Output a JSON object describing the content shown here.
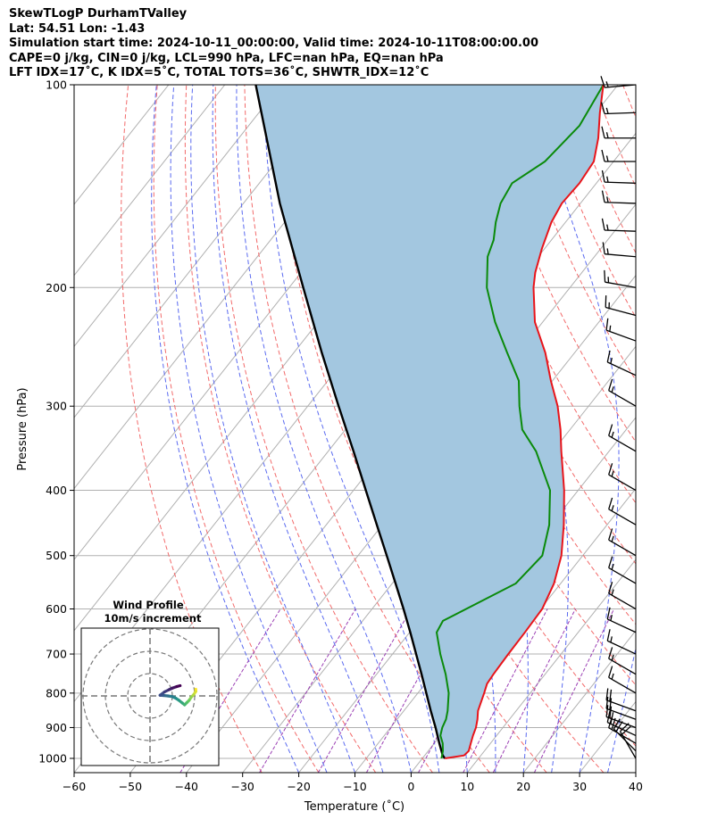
{
  "header": {
    "line1": "SkewTLogP DurhamTValley",
    "line2": "Lat: 54.51   Lon: -1.43",
    "line3": "Simulation start time: 2024-10-11_00:00:00, Valid time: 2024-10-11T08:00:00.00",
    "line4": "CAPE=0 j/kg, CIN=0 j/kg, LCL=990 hPa, LFC=nan hPa, EQ=nan hPa",
    "line5": "LFT IDX=17˚C, K IDX=5˚C, TOTAL TOTS=36˚C, SHWTR_IDX=12˚C"
  },
  "chart_data": {
    "type": "skewt",
    "xlabel": "Temperature (˚C)",
    "ylabel": "Pressure (hPa)",
    "xlim": [
      -60,
      40
    ],
    "ylim": [
      1050,
      100
    ],
    "x_ticks": [
      "−60",
      "−50",
      "−40",
      "−30",
      "−20",
      "−10",
      "0",
      "10",
      "20",
      "30",
      "40"
    ],
    "y_ticks": [
      "100",
      "200",
      "300",
      "400",
      "500",
      "600",
      "700",
      "800",
      "900",
      "1000"
    ],
    "colors": {
      "temperature": "#e8141a",
      "dewpoint": "#0a8a0a",
      "parcel": "#000000",
      "fill": "#a3c7e0",
      "dry_adiabats": "#f26a6a",
      "moist_adiabats": "#5a6af0",
      "mixing_ratio": "#9b3fb4",
      "grid": "#b0b0b0"
    },
    "temperature_profile": [
      {
        "p": 1000,
        "t": 4.0
      },
      {
        "p": 990,
        "t": 7.0
      },
      {
        "p": 975,
        "t": 7.2
      },
      {
        "p": 950,
        "t": 6.5
      },
      {
        "p": 925,
        "t": 5.8
      },
      {
        "p": 900,
        "t": 5.2
      },
      {
        "p": 875,
        "t": 4.3
      },
      {
        "p": 850,
        "t": 3.2
      },
      {
        "p": 800,
        "t": 1.8
      },
      {
        "p": 775,
        "t": 1.0
      },
      {
        "p": 750,
        "t": 0.8
      },
      {
        "p": 700,
        "t": 0.6
      },
      {
        "p": 650,
        "t": 0.5
      },
      {
        "p": 600,
        "t": 0.3
      },
      {
        "p": 550,
        "t": -1.2
      },
      {
        "p": 500,
        "t": -3.8
      },
      {
        "p": 450,
        "t": -7.7
      },
      {
        "p": 400,
        "t": -12.5
      },
      {
        "p": 350,
        "t": -18.5
      },
      {
        "p": 325,
        "t": -21.7
      },
      {
        "p": 300,
        "t": -25.5
      },
      {
        "p": 275,
        "t": -30.3
      },
      {
        "p": 250,
        "t": -35.2
      },
      {
        "p": 225,
        "t": -41.4
      },
      {
        "p": 200,
        "t": -46.5
      },
      {
        "p": 190,
        "t": -48.3
      },
      {
        "p": 175,
        "t": -50.5
      },
      {
        "p": 160,
        "t": -52.5
      },
      {
        "p": 150,
        "t": -53.3
      },
      {
        "p": 140,
        "t": -53.0
      },
      {
        "p": 130,
        "t": -53.5
      },
      {
        "p": 120,
        "t": -56.0
      },
      {
        "p": 110,
        "t": -59.3
      },
      {
        "p": 100,
        "t": -62.6
      }
    ],
    "dewpoint_profile": [
      {
        "p": 1000,
        "t": 3.4
      },
      {
        "p": 975,
        "t": 2.6
      },
      {
        "p": 950,
        "t": 1.5
      },
      {
        "p": 925,
        "t": 0.0
      },
      {
        "p": 900,
        "t": -0.8
      },
      {
        "p": 875,
        "t": -1.3
      },
      {
        "p": 850,
        "t": -2.2
      },
      {
        "p": 800,
        "t": -4.5
      },
      {
        "p": 750,
        "t": -7.7
      },
      {
        "p": 700,
        "t": -11.5
      },
      {
        "p": 650,
        "t": -15.2
      },
      {
        "p": 625,
        "t": -15.7
      },
      {
        "p": 550,
        "t": -8.0
      },
      {
        "p": 500,
        "t": -7.2
      },
      {
        "p": 450,
        "t": -10.3
      },
      {
        "p": 400,
        "t": -15.0
      },
      {
        "p": 350,
        "t": -23.0
      },
      {
        "p": 325,
        "t": -28.5
      },
      {
        "p": 300,
        "t": -32.3
      },
      {
        "p": 275,
        "t": -36.0
      },
      {
        "p": 250,
        "t": -42.0
      },
      {
        "p": 225,
        "t": -48.5
      },
      {
        "p": 200,
        "t": -54.8
      },
      {
        "p": 180,
        "t": -59.0
      },
      {
        "p": 170,
        "t": -60.3
      },
      {
        "p": 160,
        "t": -62.4
      },
      {
        "p": 150,
        "t": -64.2
      },
      {
        "p": 140,
        "t": -65.0
      },
      {
        "p": 130,
        "t": -62.2
      },
      {
        "p": 115,
        "t": -61.1
      },
      {
        "p": 100,
        "t": -62.6
      }
    ],
    "parcel_profile": [
      {
        "p": 1000,
        "t": 4.0
      },
      {
        "p": 990,
        "t": 3.2
      },
      {
        "p": 950,
        "t": 0.9
      },
      {
        "p": 900,
        "t": -2.0
      },
      {
        "p": 850,
        "t": -5.2
      },
      {
        "p": 800,
        "t": -8.5
      },
      {
        "p": 750,
        "t": -12.0
      },
      {
        "p": 700,
        "t": -15.8
      },
      {
        "p": 650,
        "t": -19.9
      },
      {
        "p": 600,
        "t": -24.4
      },
      {
        "p": 550,
        "t": -29.4
      },
      {
        "p": 500,
        "t": -34.9
      },
      {
        "p": 450,
        "t": -41.0
      },
      {
        "p": 400,
        "t": -47.8
      },
      {
        "p": 350,
        "t": -55.5
      },
      {
        "p": 300,
        "t": -64.5
      },
      {
        "p": 250,
        "t": -75.0
      },
      {
        "p": 200,
        "t": -87.5
      },
      {
        "p": 150,
        "t": -103.5
      },
      {
        "p": 100,
        "t": -124.5
      }
    ],
    "wind_barbs": [
      {
        "p": 1000,
        "speed_kt": 20,
        "dir_deg": 330
      },
      {
        "p": 975,
        "speed_kt": 20,
        "dir_deg": 315
      },
      {
        "p": 950,
        "speed_kt": 20,
        "dir_deg": 300
      },
      {
        "p": 925,
        "speed_kt": 20,
        "dir_deg": 295
      },
      {
        "p": 900,
        "speed_kt": 20,
        "dir_deg": 290
      },
      {
        "p": 875,
        "speed_kt": 20,
        "dir_deg": 290
      },
      {
        "p": 850,
        "speed_kt": 20,
        "dir_deg": 290
      },
      {
        "p": 800,
        "speed_kt": 15,
        "dir_deg": 300
      },
      {
        "p": 750,
        "speed_kt": 15,
        "dir_deg": 300
      },
      {
        "p": 700,
        "speed_kt": 15,
        "dir_deg": 295
      },
      {
        "p": 650,
        "speed_kt": 15,
        "dir_deg": 295
      },
      {
        "p": 600,
        "speed_kt": 15,
        "dir_deg": 300
      },
      {
        "p": 550,
        "speed_kt": 15,
        "dir_deg": 300
      },
      {
        "p": 500,
        "speed_kt": 15,
        "dir_deg": 300
      },
      {
        "p": 450,
        "speed_kt": 15,
        "dir_deg": 300
      },
      {
        "p": 400,
        "speed_kt": 15,
        "dir_deg": 300
      },
      {
        "p": 350,
        "speed_kt": 15,
        "dir_deg": 300
      },
      {
        "p": 300,
        "speed_kt": 15,
        "dir_deg": 300
      },
      {
        "p": 270,
        "speed_kt": 15,
        "dir_deg": 295
      },
      {
        "p": 240,
        "speed_kt": 15,
        "dir_deg": 290
      },
      {
        "p": 220,
        "speed_kt": 15,
        "dir_deg": 285
      },
      {
        "p": 200,
        "speed_kt": 15,
        "dir_deg": 280
      },
      {
        "p": 180,
        "speed_kt": 15,
        "dir_deg": 275
      },
      {
        "p": 165,
        "speed_kt": 15,
        "dir_deg": 272
      },
      {
        "p": 150,
        "speed_kt": 15,
        "dir_deg": 272
      },
      {
        "p": 140,
        "speed_kt": 15,
        "dir_deg": 272
      },
      {
        "p": 130,
        "speed_kt": 15,
        "dir_deg": 270
      },
      {
        "p": 120,
        "speed_kt": 15,
        "dir_deg": 270
      },
      {
        "p": 110,
        "speed_kt": 15,
        "dir_deg": 268
      },
      {
        "p": 100,
        "speed_kt": 15,
        "dir_deg": 265
      }
    ],
    "hodograph": {
      "title": "Wind Profile",
      "subtitle": "10m/s increment",
      "ring_step_ms": 10,
      "rings": 3,
      "uv_ms": [
        [
          20.5,
          3.0
        ],
        [
          20.5,
          2.0
        ],
        [
          19.5,
          0.5
        ],
        [
          18.5,
          -0.5
        ],
        [
          17.5,
          -2.0
        ],
        [
          16.5,
          -3.0
        ],
        [
          15.5,
          -4.0
        ],
        [
          14.5,
          -3.2
        ],
        [
          13.0,
          -2.0
        ],
        [
          11.5,
          -1.0
        ],
        [
          10.0,
          -0.3
        ],
        [
          8.0,
          0.0
        ],
        [
          6.0,
          0.2
        ],
        [
          4.5,
          0.3
        ],
        [
          6.5,
          1.8
        ],
        [
          8.5,
          2.8
        ],
        [
          10.0,
          3.5
        ],
        [
          12.0,
          4.2
        ],
        [
          13.5,
          4.6
        ]
      ]
    }
  }
}
